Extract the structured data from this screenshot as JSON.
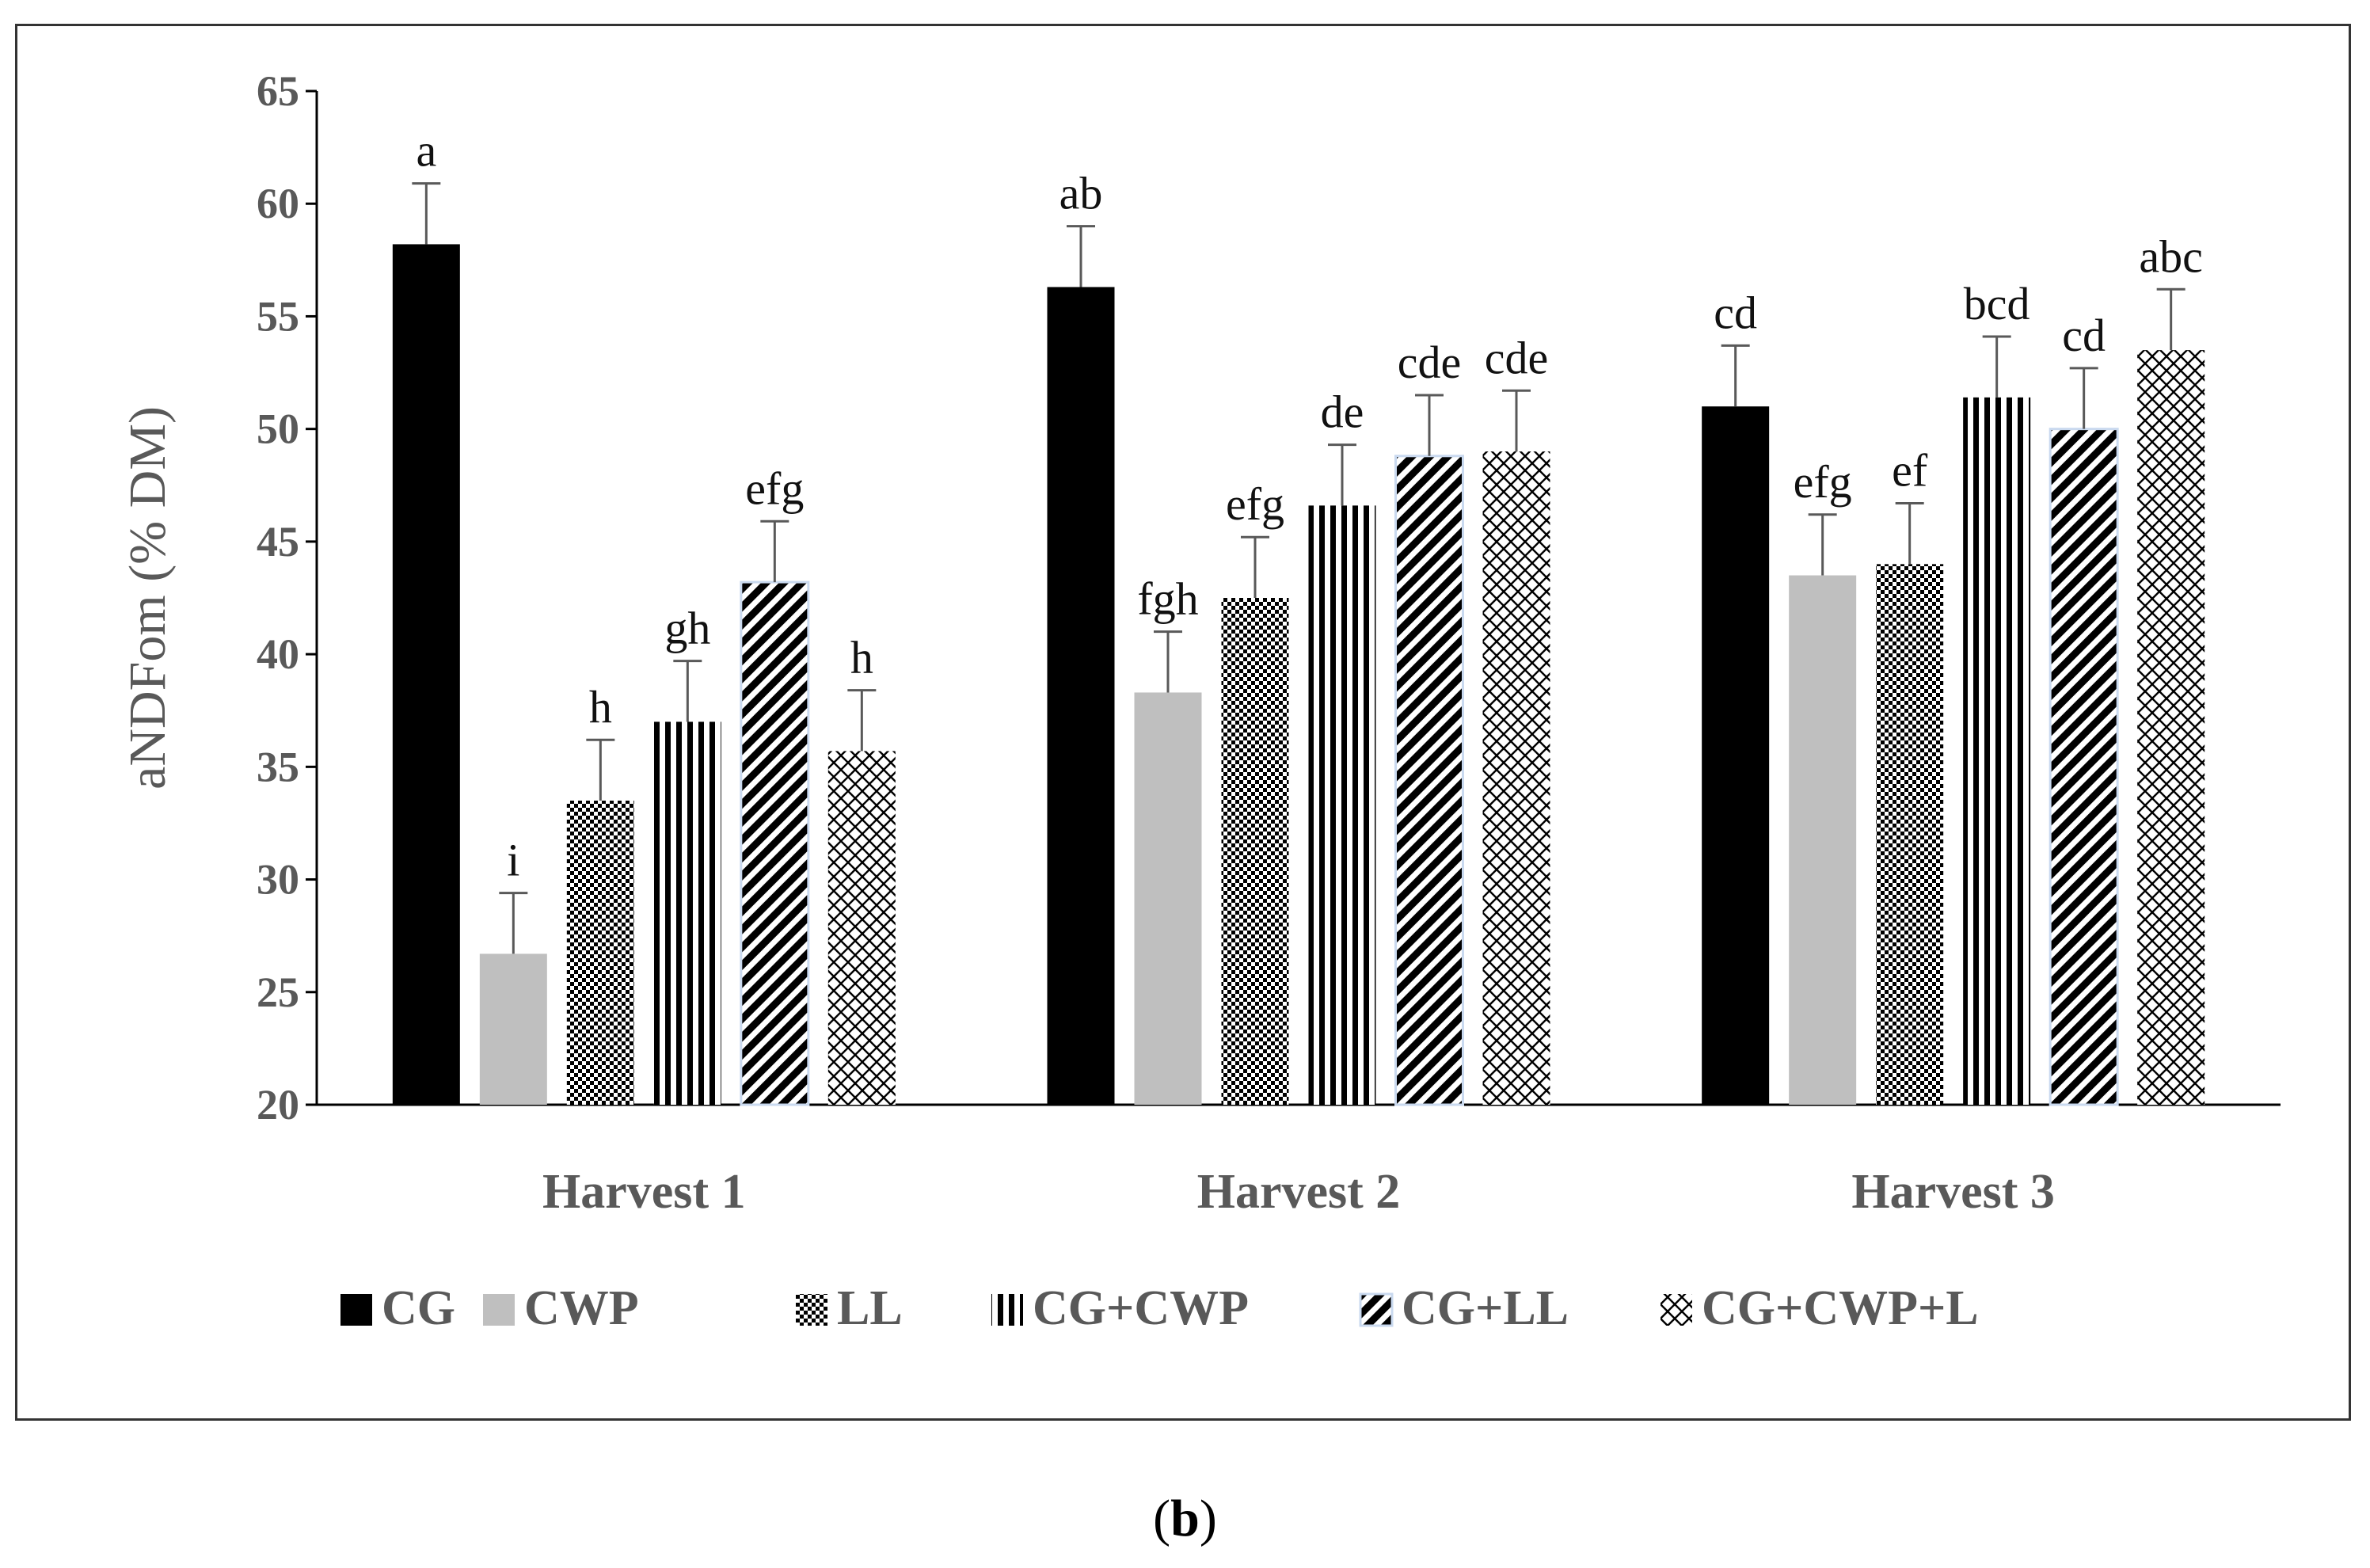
{
  "panel_label": {
    "open": "(",
    "letter": "b",
    "close": ")"
  },
  "chart_data": {
    "type": "bar",
    "title": "",
    "xlabel": "",
    "ylabel": "aNDFom (% DM)",
    "ylim": [
      20,
      65
    ],
    "yticks": [
      20,
      25,
      30,
      35,
      40,
      45,
      50,
      55,
      60,
      65
    ],
    "grid": false,
    "legend_position": "bottom",
    "categories": [
      "Harvest 1",
      "Harvest 2",
      "Harvest 3"
    ],
    "series": [
      {
        "name": "CG",
        "pattern": "solid-black",
        "values": [
          58.2,
          56.3,
          51.0
        ],
        "errors": [
          2.7,
          2.7,
          2.7
        ],
        "letters": [
          "a",
          "ab",
          "cd"
        ]
      },
      {
        "name": "CWP",
        "pattern": "solid-gray",
        "values": [
          26.7,
          38.3,
          43.5
        ],
        "errors": [
          2.7,
          2.7,
          2.7
        ],
        "letters": [
          "i",
          "fgh",
          "efg"
        ]
      },
      {
        "name": "LL",
        "pattern": "dots",
        "values": [
          33.5,
          42.5,
          44.0
        ],
        "errors": [
          2.7,
          2.7,
          2.7
        ],
        "letters": [
          "h",
          "efg",
          "ef"
        ]
      },
      {
        "name": "CG+CWP",
        "pattern": "vertical-stripes",
        "values": [
          37.0,
          46.6,
          51.4
        ],
        "errors": [
          2.7,
          2.7,
          2.7
        ],
        "letters": [
          "gh",
          "de",
          "bcd"
        ]
      },
      {
        "name": "CG+LL",
        "pattern": "diagonal-stripes",
        "values": [
          43.2,
          48.8,
          50.0
        ],
        "errors": [
          2.7,
          2.7,
          2.7
        ],
        "letters": [
          "efg",
          "cde",
          "cd"
        ]
      },
      {
        "name": "CG+CWP+L",
        "pattern": "crosshatch",
        "values": [
          35.7,
          49.0,
          53.5
        ],
        "errors": [
          2.7,
          2.7,
          2.7
        ],
        "letters": [
          "h",
          "cde",
          "abc"
        ]
      }
    ]
  },
  "colors": {
    "black": "#000000",
    "gray": "#bfbfbf",
    "axis": "#000000",
    "text": "#595959",
    "error_bar": "#595959"
  }
}
